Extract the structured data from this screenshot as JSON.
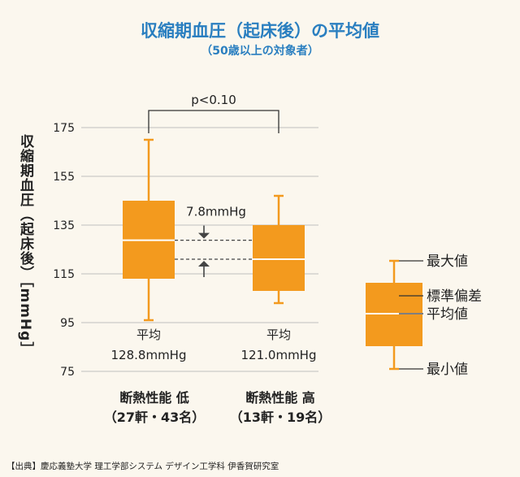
{
  "title": "収縮期血圧（起床後）の平均値",
  "subtitle": "（50歳以上の対象者）",
  "source": "【出典】慶応義塾大学 理工学部システム デザイン工学科 伊香賀研究室",
  "colors": {
    "box": "#f39a1e",
    "grid": "#bfbfbf",
    "text": "#222222"
  },
  "chart_data": {
    "type": "box",
    "ylabel": "収縮期血圧（起床後）［mmHg］",
    "ylim": [
      75,
      175
    ],
    "yticks": [
      175,
      155,
      135,
      115,
      95,
      75
    ],
    "significance": "p<0.10",
    "diff_label": "7.8mmHg",
    "groups": [
      {
        "name_line1": "断熱性能 低",
        "name_line2": "（27軒・43名）",
        "min": 96,
        "q1": 113,
        "mean": 128.8,
        "q3": 145,
        "max": 170,
        "mean_label": "平均",
        "mean_value_label": "128.8mmHg"
      },
      {
        "name_line1": "断熱性能 高",
        "name_line2": "（13軒・19名）",
        "min": 103,
        "q1": 108,
        "mean": 121.0,
        "q3": 135,
        "max": 147,
        "mean_label": "平均",
        "mean_value_label": "121.0mmHg"
      }
    ],
    "legend": [
      "最大値",
      "標準偏差",
      "平均値",
      "最小値"
    ]
  }
}
